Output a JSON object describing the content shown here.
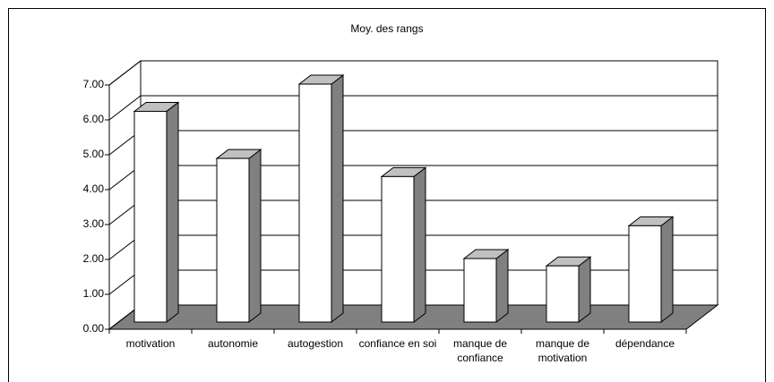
{
  "chart_data": {
    "type": "bar3d",
    "title": "Moy. des rangs",
    "categories": [
      "motivation",
      "autonomie",
      "autogestion",
      "confiance en soi",
      "manque de confiance",
      "manque de motivation",
      "dépendance"
    ],
    "values": [
      6.04,
      4.69,
      6.82,
      4.17,
      1.82,
      1.61,
      2.76
    ],
    "color": "#ffffff",
    "ylim": [
      0,
      7
    ],
    "yticks": [
      {
        "value": 0,
        "label": "0.00"
      },
      {
        "value": 1,
        "label": "1.00"
      },
      {
        "value": 2,
        "label": "2.00"
      },
      {
        "value": 3,
        "label": "3.00"
      },
      {
        "value": 4,
        "label": "4.00"
      },
      {
        "value": 5,
        "label": "5.00"
      },
      {
        "value": 6,
        "label": "6.00"
      },
      {
        "value": 7,
        "label": "7.00"
      }
    ],
    "grid": true
  }
}
